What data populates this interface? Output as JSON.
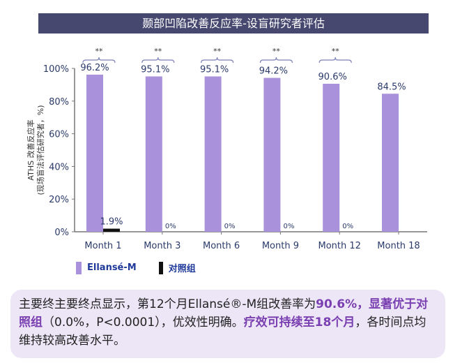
{
  "title": "颞部凹陷改善反应率-设盲研究者评估",
  "chart_data": {
    "type": "bar",
    "title": "颞部凹陷改善反应率-设盲研究者评估",
    "categories": [
      "Month 1",
      "Month 3",
      "Month 6",
      "Month 9",
      "Month 12",
      "Month 18"
    ],
    "series": [
      {
        "name": "Ellansé-M",
        "color": "#a992db",
        "values": [
          96.2,
          95.1,
          95.1,
          94.2,
          90.6,
          84.5
        ],
        "labels": [
          "96.2%",
          "95.1%",
          "95.1%",
          "94.2%",
          "90.6%",
          "84.5%"
        ]
      },
      {
        "name": "对照组",
        "color": "#111111",
        "values": [
          1.9,
          0,
          0,
          0,
          0,
          null
        ],
        "labels": [
          "1.9%",
          "0%",
          "0%",
          "0%",
          "0%",
          null
        ]
      }
    ],
    "significance": [
      "**",
      "**",
      "**",
      "**",
      "**",
      null
    ],
    "ylabel_line1": "ATHS 改善反应率",
    "ylabel_line2": "(现场盲法评估研究者，%)",
    "yticks": [
      "0%",
      "20%",
      "40%",
      "60%",
      "80%",
      "100%"
    ],
    "ylim": [
      0,
      100
    ],
    "legend": "bottom-left"
  },
  "note": {
    "p1": "主要终主要终点显示，第12个月Ellansé®-M组改善率为",
    "h1": "90.6%，显著优于对照组",
    "p2": "（0.0%，P<0.0001），优效性明确。",
    "h2": "疗效可持续至18个月",
    "p3": "，各时间点均维持较高改善水平。"
  }
}
